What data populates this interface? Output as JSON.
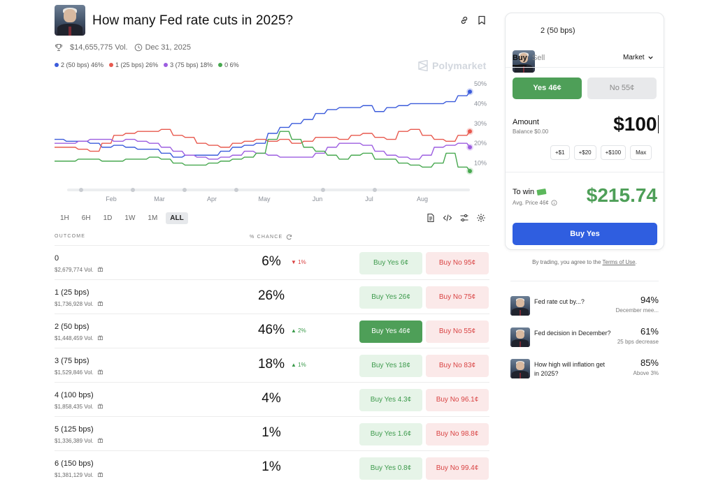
{
  "header": {
    "title": "How many Fed rate cuts in 2025?",
    "volume": "$14,655,775 Vol.",
    "date": "Dec 31, 2025",
    "watermark": "Polymarket"
  },
  "legend": [
    {
      "label": "2 (50 bps) 46%",
      "color": "#3b5bdb"
    },
    {
      "label": "1 (25 bps) 26%",
      "color": "#e8594e"
    },
    {
      "label": "3 (75 bps) 18%",
      "color": "#9c5de0"
    },
    {
      "label": "0 6%",
      "color": "#47a84f"
    }
  ],
  "timeframes": [
    "1H",
    "6H",
    "1D",
    "1W",
    "1M",
    "ALL"
  ],
  "table": {
    "outcome_header": "OUTCOME",
    "chance_header": "% CHANCE",
    "rows": [
      {
        "name": "0",
        "vol": "$2,679,774 Vol.",
        "pct": "6%",
        "chg": "1%",
        "dir": "down",
        "yes": "Buy Yes 6¢",
        "no": "Buy No 95¢"
      },
      {
        "name": "1 (25 bps)",
        "vol": "$1,736,928 Vol.",
        "pct": "26%",
        "chg": "",
        "dir": "",
        "yes": "Buy Yes 26¢",
        "no": "Buy No 75¢"
      },
      {
        "name": "2 (50 bps)",
        "vol": "$1,448,459 Vol.",
        "pct": "46%",
        "chg": "2%",
        "dir": "up",
        "yes": "Buy Yes 46¢",
        "no": "Buy No 55¢"
      },
      {
        "name": "3 (75 bps)",
        "vol": "$1,529,846 Vol.",
        "pct": "18%",
        "chg": "1%",
        "dir": "up",
        "yes": "Buy Yes 18¢",
        "no": "Buy No 83¢"
      },
      {
        "name": "4 (100 bps)",
        "vol": "$1,858,435 Vol.",
        "pct": "4%",
        "chg": "",
        "dir": "",
        "yes": "Buy Yes 4.3¢",
        "no": "Buy No 96.1¢"
      },
      {
        "name": "5 (125 bps)",
        "vol": "$1,336,389 Vol.",
        "pct": "1%",
        "chg": "",
        "dir": "",
        "yes": "Buy Yes 1.6¢",
        "no": "Buy No 98.8¢"
      },
      {
        "name": "6 (150 bps)",
        "vol": "$1,381,129 Vol.",
        "pct": "1%",
        "chg": "",
        "dir": "",
        "yes": "Buy Yes 0.8¢",
        "no": "Buy No 99.4¢"
      }
    ]
  },
  "trade": {
    "outcome": "2 (50 bps)",
    "tab_buy": "Buy",
    "tab_sell": "Sell",
    "order_type": "Market",
    "yes_label": "Yes 46¢",
    "no_label": "No 55¢",
    "amount_label": "Amount",
    "balance": "Balance $0.00",
    "amount_value": "$100",
    "quick": [
      "+$1",
      "+$20",
      "+$100",
      "Max"
    ],
    "to_win_label": "To win",
    "avg_price": "Avg. Price 46¢",
    "to_win_value": "$215.74",
    "submit": "Buy Yes",
    "terms_prefix": "By trading, you agree to the",
    "terms_link": "Terms of Use",
    "terms_suffix": "."
  },
  "related": [
    {
      "title": "Fed rate cut by...?",
      "pct": "94%",
      "sub": "December mee..."
    },
    {
      "title": "Fed decision in December?",
      "pct": "61%",
      "sub": "25 bps decrease"
    },
    {
      "title": "How high will inflation get in 2025?",
      "pct": "85%",
      "sub": "Above 3%"
    }
  ],
  "chart_data": {
    "type": "line",
    "x_ticks": [
      "Feb",
      "Mar",
      "Apr",
      "May",
      "Jun",
      "Jul",
      "Aug"
    ],
    "y_ticks": [
      "50%",
      "40%",
      "30%",
      "20%",
      "10%"
    ],
    "ylim": [
      0,
      50
    ],
    "series": [
      {
        "name": "2 (50 bps)",
        "color": "#3b5bdb",
        "values": [
          22,
          21,
          21,
          20,
          18,
          19,
          18,
          17,
          17,
          15,
          13,
          14,
          14,
          14,
          16,
          18,
          19,
          20,
          25,
          28,
          30,
          32,
          35,
          37,
          38,
          38,
          39,
          36,
          38,
          39,
          40,
          40,
          40,
          41,
          44,
          46
        ]
      },
      {
        "name": "1 (25 bps)",
        "color": "#e8594e",
        "values": [
          18,
          18,
          17,
          16,
          20,
          24,
          25,
          26,
          26,
          27,
          24,
          23,
          20,
          19,
          18,
          20,
          21,
          22,
          21,
          22,
          20,
          21,
          23,
          23,
          22,
          24,
          25,
          23,
          22,
          26,
          27,
          24,
          22,
          21,
          24,
          26
        ]
      },
      {
        "name": "3 (75 bps)",
        "color": "#9c5de0",
        "values": [
          20,
          20,
          21,
          22,
          22,
          21,
          22,
          21,
          20,
          18,
          16,
          14,
          13,
          12,
          13,
          14,
          16,
          15,
          14,
          13,
          13,
          13,
          15,
          18,
          20,
          20,
          19,
          16,
          14,
          13,
          12,
          14,
          18,
          19,
          20,
          18
        ]
      },
      {
        "name": "0",
        "color": "#47a84f",
        "values": [
          11,
          11,
          12,
          12,
          11,
          11,
          12,
          12,
          13,
          12,
          10,
          9,
          9,
          10,
          11,
          12,
          13,
          15,
          22,
          26,
          22,
          18,
          16,
          14,
          12,
          14,
          15,
          12,
          12,
          10,
          9,
          8,
          10,
          15,
          8,
          6
        ]
      }
    ]
  }
}
